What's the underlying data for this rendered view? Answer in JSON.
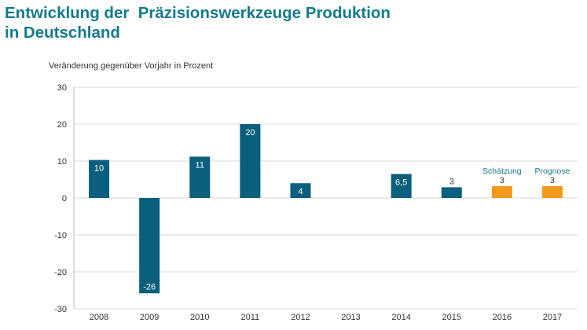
{
  "title_lines": [
    "Entwicklung der  Präzisionswerkzeuge Produktion",
    "in Deutschland"
  ],
  "chart_data": {
    "type": "bar",
    "ylabel": "Veränderung gegenüber Vorjahr in Prozent",
    "ylim": [
      -30,
      30
    ],
    "yticks": [
      30,
      20,
      10,
      0,
      -10,
      -20,
      -30
    ],
    "grid": true,
    "categories": [
      "2008",
      "2009",
      "2010",
      "2011",
      "2012",
      "2013",
      "2014",
      "2015",
      "2016",
      "2017"
    ],
    "values": [
      10.3,
      -25.8,
      11.2,
      20,
      4,
      null,
      6.5,
      2.9,
      3.2,
      3.2
    ],
    "value_labels": [
      "10",
      "-26",
      "11",
      "20",
      "4",
      "",
      "6,5",
      "3",
      "3",
      "3"
    ],
    "bar_annotations": [
      "",
      "",
      "",
      "",
      "",
      "",
      "",
      "",
      "Schätzung",
      "Prognose"
    ],
    "colors": [
      "#0a5f7d",
      "#0a5f7d",
      "#0a5f7d",
      "#0a5f7d",
      "#0a5f7d",
      "#0a5f7d",
      "#0a5f7d",
      "#0a5f7d",
      "#f39a1b",
      "#f39a1b"
    ]
  }
}
